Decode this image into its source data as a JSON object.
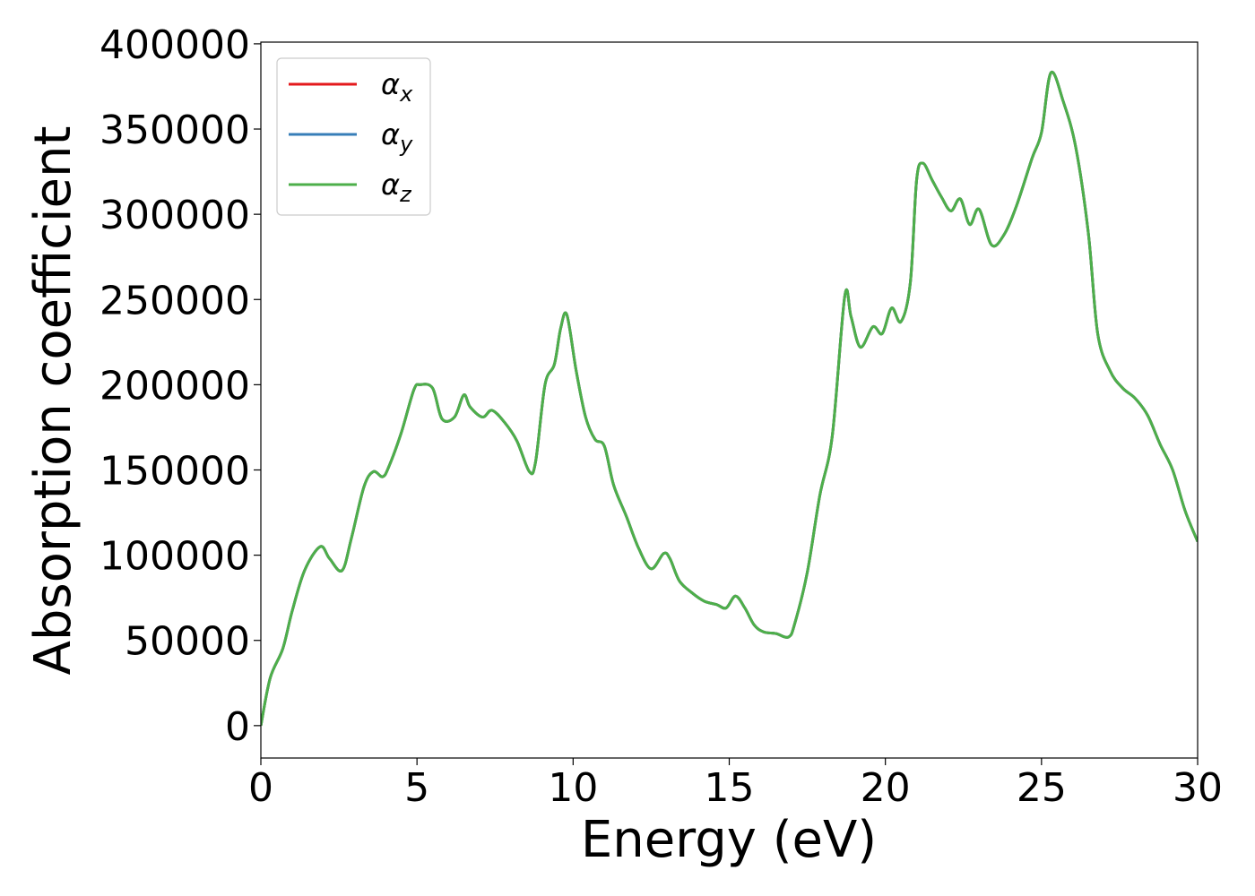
{
  "chart_data": {
    "type": "line",
    "xlabel": "Energy (eV)",
    "ylabel": "Absorption coefficient",
    "xlim": [
      0,
      30
    ],
    "ylim": [
      -19000,
      401000
    ],
    "xticks": [
      0,
      5,
      10,
      15,
      20,
      25,
      30
    ],
    "yticks": [
      0,
      50000,
      100000,
      150000,
      200000,
      250000,
      300000,
      350000,
      400000
    ],
    "grid": false,
    "legend_position": "top-left",
    "x": [
      0,
      0.3,
      0.7,
      1.0,
      1.4,
      1.9,
      2.2,
      2.6,
      2.9,
      3.3,
      3.6,
      3.9,
      4.1,
      4.5,
      4.9,
      5.1,
      5.5,
      5.8,
      6.2,
      6.5,
      6.7,
      7.1,
      7.4,
      7.8,
      8.2,
      8.6,
      8.8,
      9.1,
      9.4,
      9.6,
      9.8,
      10.1,
      10.4,
      10.7,
      11.0,
      11.3,
      11.7,
      12.1,
      12.5,
      12.9,
      13.1,
      13.4,
      13.8,
      14.2,
      14.6,
      14.9,
      15.2,
      15.5,
      15.8,
      16.1,
      16.5,
      16.9,
      17.1,
      17.5,
      17.9,
      18.3,
      18.7,
      18.9,
      19.2,
      19.6,
      19.9,
      20.2,
      20.5,
      20.8,
      21.0,
      21.2,
      21.5,
      21.8,
      22.1,
      22.4,
      22.7,
      23.0,
      23.4,
      23.8,
      24.2,
      24.7,
      25.0,
      25.3,
      25.7,
      26.1,
      26.5,
      26.8,
      27.2,
      27.6,
      28.0,
      28.4,
      28.8,
      29.2,
      29.6,
      30.0
    ],
    "series": [
      {
        "name": "αx",
        "color": "#e41a1c",
        "values": [
          0,
          28000,
          45000,
          67000,
          91000,
          105000,
          98000,
          91000,
          110000,
          140000,
          149000,
          146000,
          152000,
          172000,
          197000,
          200000,
          198000,
          180000,
          181000,
          194000,
          187000,
          181000,
          185000,
          178000,
          167000,
          149000,
          155000,
          200000,
          212000,
          233000,
          241000,
          208000,
          181000,
          168000,
          164000,
          141000,
          123000,
          104000,
          92000,
          101000,
          98000,
          85000,
          78000,
          73000,
          71000,
          69000,
          76000,
          69000,
          59000,
          55000,
          54000,
          52000,
          60000,
          90000,
          135000,
          170000,
          252000,
          240000,
          222000,
          234000,
          230000,
          245000,
          237000,
          260000,
          320000,
          330000,
          320000,
          310000,
          302000,
          309000,
          294000,
          303000,
          282000,
          288000,
          305000,
          333000,
          348000,
          383000,
          366000,
          339000,
          289000,
          230000,
          208000,
          198000,
          192000,
          182000,
          165000,
          150000,
          126000,
          108000
        ]
      },
      {
        "name": "αy",
        "color": "#377eb8",
        "values": [
          0,
          28000,
          45000,
          67000,
          91000,
          105000,
          98000,
          91000,
          110000,
          140000,
          149000,
          146000,
          152000,
          172000,
          197000,
          200000,
          198000,
          180000,
          181000,
          194000,
          187000,
          181000,
          185000,
          178000,
          167000,
          149000,
          155000,
          200000,
          212000,
          233000,
          241000,
          208000,
          181000,
          168000,
          164000,
          141000,
          123000,
          104000,
          92000,
          101000,
          98000,
          85000,
          78000,
          73000,
          71000,
          69000,
          76000,
          69000,
          59000,
          55000,
          54000,
          52000,
          60000,
          90000,
          135000,
          170000,
          252000,
          240000,
          222000,
          234000,
          230000,
          245000,
          237000,
          260000,
          320000,
          330000,
          320000,
          310000,
          302000,
          309000,
          294000,
          303000,
          282000,
          288000,
          305000,
          333000,
          348000,
          383000,
          366000,
          339000,
          289000,
          230000,
          208000,
          198000,
          192000,
          182000,
          165000,
          150000,
          126000,
          108000
        ]
      },
      {
        "name": "αz",
        "color": "#4daf4a",
        "values": [
          0,
          28000,
          45000,
          67000,
          91000,
          105000,
          98000,
          91000,
          110000,
          140000,
          149000,
          146000,
          152000,
          172000,
          197000,
          200000,
          198000,
          180000,
          181000,
          194000,
          187000,
          181000,
          185000,
          178000,
          167000,
          149000,
          155000,
          200000,
          212000,
          233000,
          241000,
          208000,
          181000,
          168000,
          164000,
          141000,
          123000,
          104000,
          92000,
          101000,
          98000,
          85000,
          78000,
          73000,
          71000,
          69000,
          76000,
          69000,
          59000,
          55000,
          54000,
          52000,
          60000,
          90000,
          135000,
          170000,
          252000,
          240000,
          222000,
          234000,
          230000,
          245000,
          237000,
          260000,
          320000,
          330000,
          320000,
          310000,
          302000,
          309000,
          294000,
          303000,
          282000,
          288000,
          305000,
          333000,
          348000,
          383000,
          366000,
          339000,
          289000,
          230000,
          208000,
          198000,
          192000,
          182000,
          165000,
          150000,
          126000,
          108000
        ]
      }
    ]
  }
}
